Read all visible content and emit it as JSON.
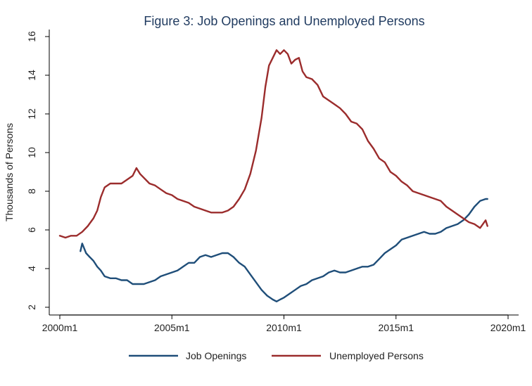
{
  "chart_data": {
    "type": "line",
    "title": "Figure 3: Job Openings and Unemployed Persons",
    "xlabel": "",
    "ylabel": "Thousands of Persons",
    "xlim": [
      2000.0,
      2020.0
    ],
    "ylim": [
      2,
      16
    ],
    "x_ticks": [
      {
        "value": 2000,
        "label": "2000m1"
      },
      {
        "value": 2005,
        "label": "2005m1"
      },
      {
        "value": 2010,
        "label": "2010m1"
      },
      {
        "value": 2015,
        "label": "2015m1"
      },
      {
        "value": 2020,
        "label": "2020m1"
      }
    ],
    "y_ticks": [
      {
        "value": 2,
        "label": "2"
      },
      {
        "value": 4,
        "label": "4"
      },
      {
        "value": 6,
        "label": "6"
      },
      {
        "value": 8,
        "label": "8"
      },
      {
        "value": 10,
        "label": "10"
      },
      {
        "value": 12,
        "label": "12"
      },
      {
        "value": 14,
        "label": "14"
      },
      {
        "value": 16,
        "label": "16"
      }
    ],
    "grid": false,
    "legend_position": "bottom",
    "series": [
      {
        "name": "Job Openings",
        "color": "#1f4e79",
        "x": [
          2000.92,
          2001.0,
          2001.17,
          2001.33,
          2001.5,
          2001.67,
          2001.83,
          2002.0,
          2002.25,
          2002.5,
          2002.75,
          2003.0,
          2003.25,
          2003.5,
          2003.75,
          2004.0,
          2004.25,
          2004.5,
          2004.75,
          2005.0,
          2005.25,
          2005.5,
          2005.75,
          2006.0,
          2006.25,
          2006.5,
          2006.75,
          2007.0,
          2007.25,
          2007.5,
          2007.75,
          2008.0,
          2008.25,
          2008.5,
          2008.75,
          2009.0,
          2009.25,
          2009.5,
          2009.67,
          2009.83,
          2010.0,
          2010.25,
          2010.5,
          2010.75,
          2011.0,
          2011.25,
          2011.5,
          2011.75,
          2012.0,
          2012.25,
          2012.5,
          2012.75,
          2013.0,
          2013.25,
          2013.5,
          2013.75,
          2014.0,
          2014.25,
          2014.5,
          2014.75,
          2015.0,
          2015.25,
          2015.5,
          2015.75,
          2016.0,
          2016.25,
          2016.5,
          2016.75,
          2017.0,
          2017.25,
          2017.5,
          2017.75,
          2018.0,
          2018.25,
          2018.5,
          2018.75,
          2019.0,
          2019.08
        ],
        "values": [
          4.9,
          5.3,
          4.8,
          4.6,
          4.4,
          4.1,
          3.9,
          3.6,
          3.5,
          3.5,
          3.4,
          3.4,
          3.2,
          3.2,
          3.2,
          3.3,
          3.4,
          3.6,
          3.7,
          3.8,
          3.9,
          4.1,
          4.3,
          4.3,
          4.6,
          4.7,
          4.6,
          4.7,
          4.8,
          4.8,
          4.6,
          4.3,
          4.1,
          3.7,
          3.3,
          2.9,
          2.6,
          2.4,
          2.3,
          2.4,
          2.5,
          2.7,
          2.9,
          3.1,
          3.2,
          3.4,
          3.5,
          3.6,
          3.8,
          3.9,
          3.8,
          3.8,
          3.9,
          4.0,
          4.1,
          4.1,
          4.2,
          4.5,
          4.8,
          5.0,
          5.2,
          5.5,
          5.6,
          5.7,
          5.8,
          5.9,
          5.8,
          5.8,
          5.9,
          6.1,
          6.2,
          6.3,
          6.5,
          6.8,
          7.2,
          7.5,
          7.6,
          7.6
        ]
      },
      {
        "name": "Unemployed Persons",
        "color": "#9b2c2c",
        "x": [
          2000.0,
          2000.25,
          2000.5,
          2000.75,
          2001.0,
          2001.25,
          2001.5,
          2001.67,
          2001.83,
          2002.0,
          2002.25,
          2002.5,
          2002.75,
          2003.0,
          2003.25,
          2003.42,
          2003.58,
          2003.75,
          2004.0,
          2004.25,
          2004.5,
          2004.75,
          2005.0,
          2005.25,
          2005.5,
          2005.75,
          2006.0,
          2006.25,
          2006.5,
          2006.75,
          2007.0,
          2007.25,
          2007.5,
          2007.75,
          2008.0,
          2008.25,
          2008.5,
          2008.75,
          2009.0,
          2009.17,
          2009.33,
          2009.5,
          2009.67,
          2009.83,
          2010.0,
          2010.17,
          2010.33,
          2010.5,
          2010.67,
          2010.83,
          2011.0,
          2011.25,
          2011.5,
          2011.75,
          2012.0,
          2012.25,
          2012.5,
          2012.75,
          2013.0,
          2013.25,
          2013.5,
          2013.75,
          2014.0,
          2014.25,
          2014.5,
          2014.75,
          2015.0,
          2015.25,
          2015.5,
          2015.75,
          2016.0,
          2016.25,
          2016.5,
          2016.75,
          2017.0,
          2017.25,
          2017.5,
          2017.75,
          2018.0,
          2018.25,
          2018.5,
          2018.75,
          2019.0,
          2019.08
        ],
        "values": [
          5.7,
          5.6,
          5.7,
          5.7,
          5.9,
          6.2,
          6.6,
          7.0,
          7.7,
          8.2,
          8.4,
          8.4,
          8.4,
          8.6,
          8.8,
          9.2,
          8.9,
          8.7,
          8.4,
          8.3,
          8.1,
          7.9,
          7.8,
          7.6,
          7.5,
          7.4,
          7.2,
          7.1,
          7.0,
          6.9,
          6.9,
          6.9,
          7.0,
          7.2,
          7.6,
          8.1,
          8.9,
          10.1,
          11.8,
          13.4,
          14.5,
          14.9,
          15.3,
          15.1,
          15.3,
          15.1,
          14.6,
          14.8,
          14.9,
          14.2,
          13.9,
          13.8,
          13.5,
          12.9,
          12.7,
          12.5,
          12.3,
          12.0,
          11.6,
          11.5,
          11.2,
          10.6,
          10.2,
          9.7,
          9.5,
          9.0,
          8.8,
          8.5,
          8.3,
          8.0,
          7.9,
          7.8,
          7.7,
          7.6,
          7.5,
          7.2,
          7.0,
          6.8,
          6.6,
          6.4,
          6.3,
          6.1,
          6.5,
          6.2
        ]
      }
    ]
  }
}
